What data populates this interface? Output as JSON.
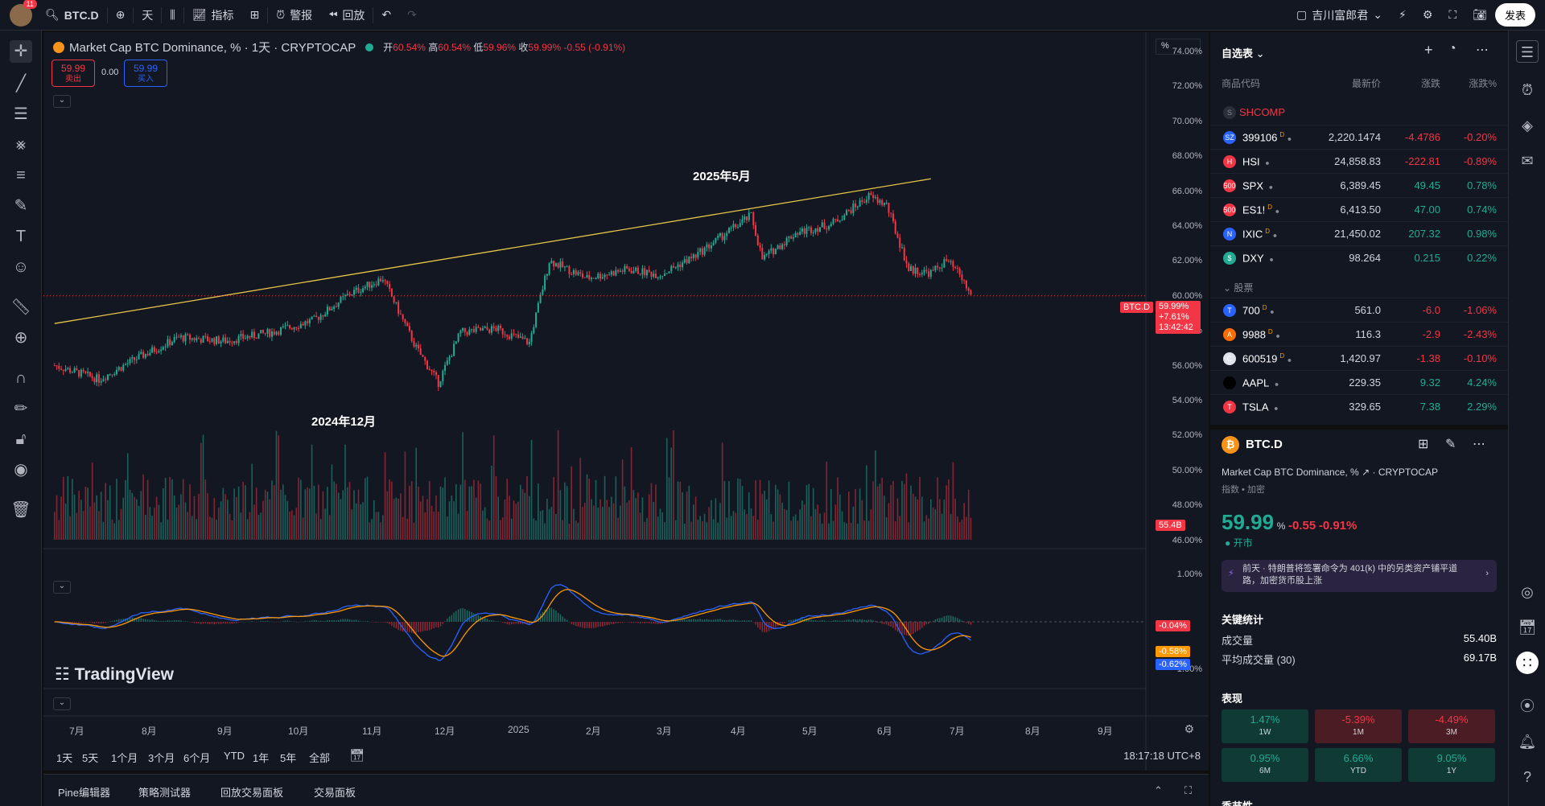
{
  "topbar": {
    "notif_count": "11",
    "symbol": "BTC.D",
    "interval": "天",
    "indicators": "指标",
    "alert": "警报",
    "replay": "回放",
    "account": "吉川富郎君",
    "publish": "发表"
  },
  "chart": {
    "title": "Market Cap BTC Dominance, % · 1天 · CRYPTOCAP",
    "ohlc": {
      "open_label": "开",
      "open": "60.54%",
      "high_label": "高",
      "high": "60.54%",
      "low_label": "低",
      "low": "59.96%",
      "close_label": "收",
      "close": "59.99%",
      "change": "-0.55 (-0.91%)"
    },
    "sell_price": "59.99",
    "sell_label": "卖出",
    "spread": "0.00",
    "buy_price": "59.99",
    "buy_label": "买入",
    "scale_mode": "%",
    "annotation_top": "2025年5月",
    "annotation_bottom": "2024年12月",
    "price_tag": {
      "symbol": "BTC.D",
      "price": "59.99%",
      "change": "+7.61%",
      "countdown": "13:42:42"
    },
    "volume_tag": "55.4B",
    "macd_tags": [
      "-0.04%",
      "-0.58%",
      "-0.62%"
    ],
    "y_labels": [
      "74.00%",
      "72.00%",
      "70.00%",
      "68.00%",
      "66.00%",
      "64.00%",
      "62.00%",
      "60.00%",
      "58.00%",
      "56.00%",
      "54.00%",
      "52.00%",
      "50.00%",
      "48.00%",
      "46.00%"
    ],
    "macd_y_labels": [
      "1.00%",
      "-1.00%"
    ],
    "x_labels": [
      "7月",
      "8月",
      "9月",
      "10月",
      "11月",
      "12月",
      "2025",
      "2月",
      "3月",
      "4月",
      "5月",
      "6月",
      "7月",
      "8月",
      "9月"
    ],
    "ranges": [
      "1天",
      "5天",
      "1个月",
      "3个月",
      "6个月",
      "YTD",
      "1年",
      "5年",
      "全部"
    ],
    "clock": "18:17:18 UTC+8",
    "watermark": "TradingView",
    "colors": {
      "up": "#22ab94",
      "down": "#f23645",
      "trend": "#e8c547",
      "macd": "#2962ff",
      "signal": "#ff9800"
    }
  },
  "chart_data": {
    "type": "line",
    "title": "Market Cap BTC Dominance, %",
    "xlabel": "",
    "ylabel": "",
    "ylim": [
      46,
      74
    ],
    "x": [
      "2024-06-25",
      "2024-07-15",
      "2024-08-01",
      "2024-08-20",
      "2024-09-10",
      "2024-10-01",
      "2024-10-20",
      "2024-11-05",
      "2024-11-20",
      "2024-12-05",
      "2024-12-15",
      "2024-12-25",
      "2025-01-10",
      "2025-01-25",
      "2025-02-03",
      "2025-02-20",
      "2025-03-10",
      "2025-03-25",
      "2025-04-10",
      "2025-04-25",
      "2025-05-05",
      "2025-05-10",
      "2025-05-25",
      "2025-06-10",
      "2025-06-27",
      "2025-07-05",
      "2025-07-15",
      "2025-07-25",
      "2025-08-01",
      "2025-08-07",
      "2025-08-12"
    ],
    "series": [
      {
        "values": [
          56.0,
          55.2,
          56.4,
          57.6,
          57.4,
          57.9,
          58.6,
          60.1,
          61.0,
          57.0,
          55.0,
          57.9,
          58.1,
          57.3,
          62.0,
          61.0,
          61.5,
          61.2,
          62.3,
          63.7,
          64.6,
          62.1,
          63.6,
          64.1,
          65.7,
          65.2,
          61.5,
          61.3,
          62.0,
          61.2,
          59.99
        ]
      }
    ],
    "trendline": {
      "from": {
        "x": "2024-06-25",
        "y": 58.4
      },
      "to": {
        "x": "2025-07-25",
        "y": 66.7
      }
    }
  },
  "bottom_panel": {
    "tabs": [
      "Pine编辑器",
      "策略测试器",
      "回放交易面板",
      "交易面板"
    ]
  },
  "watchlist": {
    "title": "自选表",
    "columns": [
      "商品代码",
      "最新价",
      "涨跌",
      "涨跌%"
    ],
    "group_top": "SHCOMP",
    "items": [
      {
        "icon": "SZ",
        "icon_color": "#2962ff",
        "sym": "399106",
        "flag": "D",
        "last": "2,220.1474",
        "chg": "-4.4786",
        "pct": "-0.20%",
        "dir": "dn"
      },
      {
        "icon": "H",
        "icon_color": "#f23645",
        "sym": "HSI",
        "flag": "",
        "last": "24,858.83",
        "chg": "-222.81",
        "pct": "-0.89%",
        "dir": "dn"
      },
      {
        "icon": "500",
        "icon_color": "#f23645",
        "sym": "SPX",
        "flag": "",
        "last": "6,389.45",
        "chg": "49.45",
        "pct": "0.78%",
        "dir": "up"
      },
      {
        "icon": "500",
        "icon_color": "#f23645",
        "sym": "ES1!",
        "flag": "D",
        "last": "6,413.50",
        "chg": "47.00",
        "pct": "0.74%",
        "dir": "up"
      },
      {
        "icon": "N",
        "icon_color": "#2962ff",
        "sym": "IXIC",
        "flag": "D",
        "last": "21,450.02",
        "chg": "207.32",
        "pct": "0.98%",
        "dir": "up"
      },
      {
        "icon": "$",
        "icon_color": "#22ab94",
        "sym": "DXY",
        "flag": "",
        "last": "98.264",
        "chg": "0.215",
        "pct": "0.22%",
        "dir": "up"
      }
    ],
    "group_stocks": "股票",
    "stocks": [
      {
        "icon": "T",
        "icon_color": "#2962ff",
        "sym": "700",
        "flag": "D",
        "last": "561.0",
        "chg": "-6.0",
        "pct": "-1.06%",
        "dir": "dn"
      },
      {
        "icon": "A",
        "icon_color": "#ff6d00",
        "sym": "9988",
        "flag": "D",
        "last": "116.3",
        "chg": "-2.9",
        "pct": "-2.43%",
        "dir": "dn"
      },
      {
        "icon": "C",
        "icon_color": "#e0e3eb",
        "sym": "600519",
        "flag": "D",
        "last": "1,420.97",
        "chg": "-1.38",
        "pct": "-0.10%",
        "dir": "dn"
      },
      {
        "icon": "",
        "icon_color": "#000000",
        "sym": "AAPL",
        "flag": "",
        "last": "229.35",
        "chg": "9.32",
        "pct": "4.24%",
        "dir": "up"
      },
      {
        "icon": "T",
        "icon_color": "#f23645",
        "sym": "TSLA",
        "flag": "",
        "last": "329.65",
        "chg": "7.38",
        "pct": "2.29%",
        "dir": "up"
      }
    ]
  },
  "details": {
    "symbol": "BTC.D",
    "name": "Market Cap BTC Dominance, %",
    "exchange": "CRYPTOCAP",
    "category": "指数 • 加密",
    "price": "59.99",
    "unit": "%",
    "change": "-0.55",
    "change_pct": "-0.91%",
    "market_status": "开市",
    "news_time": "前天",
    "news": "特朗普将签署命令为 401(k) 中的另类资产铺平道路，加密货币股上涨",
    "stats_title": "关键统计",
    "volume_label": "成交量",
    "volume": "55.40B",
    "avg_volume_label": "平均成交量 (30)",
    "avg_volume": "69.17B",
    "perf_title": "表现",
    "perf": [
      {
        "v": "1.47%",
        "p": "1W",
        "dir": "up"
      },
      {
        "v": "-5.39%",
        "p": "1M",
        "dir": "dn"
      },
      {
        "v": "-4.49%",
        "p": "3M",
        "dir": "dn"
      },
      {
        "v": "0.95%",
        "p": "6M",
        "dir": "up"
      },
      {
        "v": "6.66%",
        "p": "YTD",
        "dir": "up"
      },
      {
        "v": "9.05%",
        "p": "1Y",
        "dir": "up"
      }
    ],
    "seasonal": "季节性"
  }
}
